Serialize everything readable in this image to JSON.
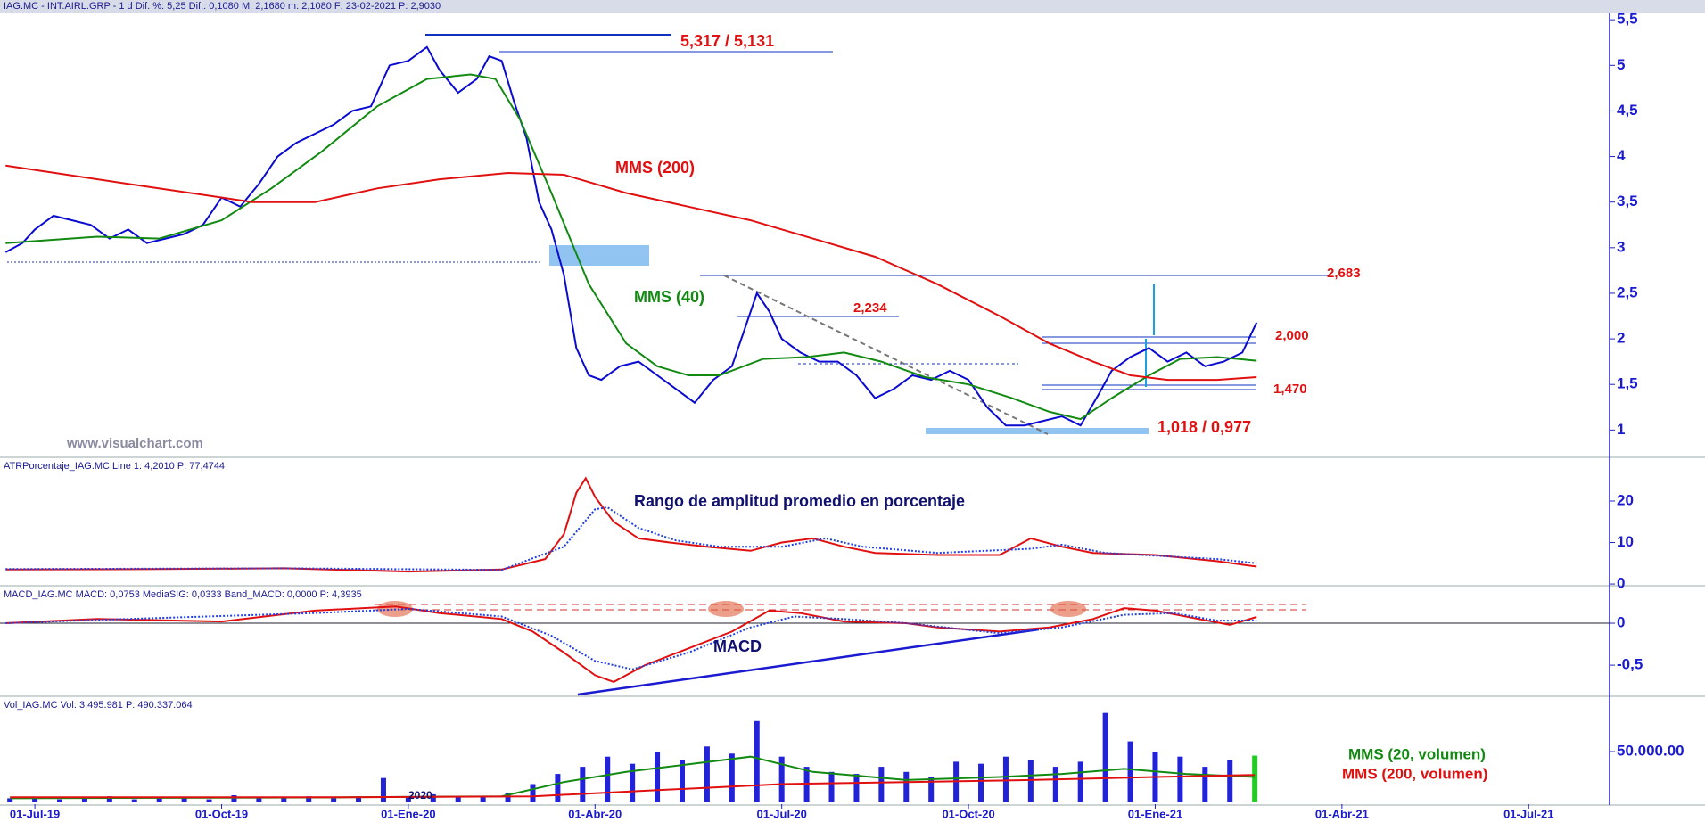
{
  "chart_data": [
    {
      "type": "line",
      "title": "IAG.MC - INT.AIRL.GRP - 1 d  Dif. %: 5,25  Dif.: 0,1080  M: 2,1680  m: 2,1080  F: 23-02-2021  P: 2,9030",
      "xlim": [
        -0.56,
        25.3
      ],
      "ylim": [
        0.71,
        5.57
      ],
      "yticks": [
        1,
        {
          "value": 1.5,
          "label": "1,5"
        },
        2,
        {
          "value": 2.5,
          "label": "2,5"
        },
        3,
        {
          "value": 3.5,
          "label": "3,5"
        },
        4,
        {
          "value": 4.5,
          "label": "4,5"
        },
        5,
        {
          "value": 5.5,
          "label": "5,5"
        }
      ],
      "series": [
        {
          "color": "#0a0ad0",
          "x": [
            -0.47,
            -0.2,
            0,
            0.3,
            0.6,
            0.9,
            1.2,
            1.5,
            1.8,
            2.1,
            2.4,
            2.7,
            3.0,
            3.3,
            3.6,
            3.9,
            4.2,
            4.5,
            4.8,
            5.1,
            5.4,
            5.7,
            6.0,
            6.3,
            6.5,
            6.8,
            7.1,
            7.3,
            7.5,
            7.7,
            7.9,
            8.1,
            8.3,
            8.5,
            8.7,
            8.9,
            9.1,
            9.4,
            9.7,
            10.0,
            10.3,
            10.6,
            10.9,
            11.2,
            11.4,
            11.6,
            11.8,
            12.0,
            12.3,
            12.6,
            12.9,
            13.2,
            13.5,
            13.8,
            14.1,
            14.4,
            14.7,
            15.0,
            15.3,
            15.6,
            15.9,
            16.2,
            16.5,
            16.8,
            17.1,
            17.3,
            17.6,
            17.9,
            18.2,
            18.5,
            18.8,
            19.1,
            19.4,
            19.63
          ],
          "values": [
            2.95,
            3.05,
            3.2,
            3.35,
            3.3,
            3.25,
            3.1,
            3.2,
            3.05,
            3.1,
            3.15,
            3.25,
            3.55,
            3.45,
            3.7,
            4.0,
            4.15,
            4.25,
            4.35,
            4.5,
            4.55,
            5.0,
            5.05,
            5.2,
            4.95,
            4.7,
            4.85,
            5.1,
            5.05,
            4.6,
            4.2,
            3.5,
            3.2,
            2.7,
            1.9,
            1.6,
            1.55,
            1.7,
            1.75,
            1.6,
            1.45,
            1.3,
            1.55,
            1.7,
            2.1,
            2.5,
            2.3,
            2.0,
            1.85,
            1.75,
            1.75,
            1.6,
            1.35,
            1.45,
            1.6,
            1.55,
            1.65,
            1.55,
            1.25,
            1.05,
            1.05,
            1.1,
            1.15,
            1.05,
            1.4,
            1.65,
            1.8,
            1.9,
            1.75,
            1.85,
            1.7,
            1.75,
            1.85,
            2.18
          ]
        },
        {
          "color": "#128a12",
          "x": [
            -0.47,
            1,
            2,
            3,
            3.8,
            4.6,
            5.5,
            6.3,
            7.0,
            7.4,
            7.8,
            8.3,
            8.9,
            9.5,
            10.0,
            10.5,
            11.0,
            11.7,
            12.4,
            13.0,
            13.6,
            14.3,
            15.0,
            15.7,
            16.3,
            16.8,
            17.3,
            17.9,
            18.4,
            19.0,
            19.63
          ],
          "values": [
            3.05,
            3.12,
            3.1,
            3.3,
            3.65,
            4.05,
            4.55,
            4.85,
            4.9,
            4.85,
            4.4,
            3.6,
            2.6,
            1.95,
            1.7,
            1.6,
            1.6,
            1.78,
            1.8,
            1.85,
            1.75,
            1.58,
            1.5,
            1.35,
            1.2,
            1.12,
            1.35,
            1.6,
            1.78,
            1.8,
            1.76
          ]
        },
        {
          "color": "#e01010",
          "x": [
            -0.47,
            1.5,
            3.5,
            4.5,
            5.5,
            6.5,
            7.6,
            8.5,
            9.5,
            10.5,
            11.5,
            12.5,
            13.5,
            14.5,
            15.5,
            16.3,
            17.0,
            17.6,
            18.2,
            19.0,
            19.63
          ],
          "values": [
            3.9,
            3.7,
            3.5,
            3.5,
            3.65,
            3.75,
            3.82,
            3.8,
            3.6,
            3.45,
            3.3,
            3.1,
            2.9,
            2.6,
            2.25,
            1.95,
            1.75,
            1.6,
            1.55,
            1.55,
            1.58
          ]
        }
      ],
      "annotations": [
        "5,317 / 5,131",
        "MMS (200)",
        "MMS (40)",
        "2,683",
        "2,234",
        "2,000",
        "1,470",
        "1,018 / 0,977",
        "www.visualchart.com"
      ]
    },
    {
      "type": "line",
      "title": "ATRPorcentaje_IAG.MC  Line 1: 4,2010  P: 77,4744",
      "xlim": [
        -0.56,
        25.3
      ],
      "ylim": [
        -0.2,
        30.1
      ],
      "yticks": [
        0,
        10,
        20
      ],
      "series": [
        {
          "color": "#e01010",
          "x": [
            -0.47,
            2,
            4,
            6,
            7.5,
            8.2,
            8.5,
            8.7,
            8.85,
            9.0,
            9.3,
            9.7,
            10.2,
            10.8,
            11.5,
            12,
            12.5,
            13,
            13.5,
            14.5,
            15.5,
            16,
            16.5,
            17,
            18,
            19,
            19.63
          ],
          "values": [
            3.5,
            3.6,
            3.8,
            3.0,
            3.5,
            6,
            12,
            22,
            25.5,
            21,
            15,
            11,
            10,
            9,
            8,
            10,
            11,
            9,
            7.5,
            7,
            7,
            11,
            9,
            7.5,
            7,
            5.5,
            4.2
          ]
        },
        {
          "color": "#2040e0",
          "x": [
            -0.47,
            4,
            7.5,
            8.5,
            9.0,
            9.2,
            9.7,
            10.3,
            11,
            12,
            12.7,
            13.3,
            14.5,
            16,
            16.5,
            17.2,
            19,
            19.63
          ],
          "values": [
            3.6,
            3.8,
            3.4,
            9,
            18,
            18.5,
            13.5,
            10.5,
            9,
            9,
            11,
            9,
            7.5,
            8.5,
            9.5,
            7.5,
            6,
            5
          ]
        }
      ],
      "annotations": [
        "Rango de amplitud promedio en porcentaje"
      ]
    },
    {
      "type": "line",
      "title": "MACD_IAG.MC  MACD: 0,0753  MediaSIG: 0,0333  Band_MACD: 0,0000  P: 4,3935",
      "xlim": [
        -0.56,
        25.3
      ],
      "ylim": [
        -0.86,
        0.425
      ],
      "yticks": [
        {
          "value": -0.5,
          "label": "-0,5"
        },
        0
      ],
      "series": [
        {
          "color": "#e01010",
          "x": [
            -0.47,
            1,
            3,
            4.5,
            5.8,
            6.5,
            7.5,
            8.0,
            8.5,
            9.0,
            9.3,
            9.8,
            10.5,
            11.2,
            11.8,
            12.3,
            13,
            14,
            14.5,
            15.5,
            16.3,
            17,
            17.5,
            18,
            18.7,
            19.2,
            19.63
          ],
          "values": [
            0,
            0.05,
            0.02,
            0.15,
            0.2,
            0.12,
            0.05,
            -0.1,
            -0.35,
            -0.62,
            -0.7,
            -0.5,
            -0.3,
            -0.1,
            0.15,
            0.12,
            0.02,
            0,
            -0.05,
            -0.1,
            -0.05,
            0.05,
            0.18,
            0.15,
            0.05,
            -0.02,
            0.075
          ]
        },
        {
          "color": "#2040e0",
          "x": [
            -0.47,
            1,
            4.5,
            6,
            7.5,
            8.3,
            9.0,
            9.6,
            10.5,
            11.5,
            12.2,
            13,
            14,
            15.5,
            16.5,
            17.5,
            18.3,
            19,
            19.63
          ],
          "values": [
            0,
            0.04,
            0.12,
            0.17,
            0.08,
            -0.15,
            -0.45,
            -0.55,
            -0.35,
            -0.05,
            0.08,
            0.05,
            0,
            -0.12,
            -0.05,
            0.1,
            0.12,
            0.03,
            0.033
          ]
        }
      ],
      "annotations": [
        "MACD"
      ]
    },
    {
      "type": "bar",
      "title": "Vol_IAG.MC  Vol: 3.495.981  P: 490.337.064",
      "xlim": [
        -0.56,
        25.3
      ],
      "ylim": [
        -1750000,
        102600000
      ],
      "yticks": [
        {
          "value": 50000000,
          "label": "50.000.00"
        }
      ],
      "xticks": [
        {
          "value": 0,
          "label": "01-Jul-19"
        },
        {
          "value": 3,
          "label": "01-Oct-19"
        },
        {
          "value": 6,
          "label": "01-Ene-20"
        },
        {
          "value": 9,
          "label": "01-Abr-20"
        },
        {
          "value": 12,
          "label": "01-Jul-20"
        },
        {
          "value": 15,
          "label": "01-Oct-20"
        },
        {
          "value": 18,
          "label": "01-Ene-21"
        },
        {
          "value": 21,
          "label": "01-Abr-21"
        },
        {
          "value": 24,
          "label": "01-Jul-21"
        }
      ],
      "series": [
        {
          "type": "bar",
          "color": "#2222d8",
          "last_color": "#22cc22",
          "x": [
            -0.4,
            0,
            0.4,
            0.8,
            1.2,
            1.6,
            2.0,
            2.4,
            2.8,
            3.2,
            3.6,
            4.0,
            4.4,
            4.8,
            5.2,
            5.6,
            6.0,
            6.4,
            6.8,
            7.2,
            7.6,
            8.0,
            8.4,
            8.8,
            9.2,
            9.6,
            10.0,
            10.4,
            10.8,
            11.2,
            11.6,
            12.0,
            12.4,
            12.8,
            13.2,
            13.6,
            14.0,
            14.4,
            14.8,
            15.2,
            15.6,
            16.0,
            16.4,
            16.8,
            17.2,
            17.6,
            18.0,
            18.4,
            18.8,
            19.2,
            19.6
          ],
          "values": [
            4000000.0,
            5000000.0,
            3000000.0,
            4000000.0,
            6000000.0,
            3000000.0,
            4000000.0,
            5000000.0,
            3000000.0,
            7000000.0,
            4000000.0,
            5000000.0,
            6000000.0,
            4000000.0,
            6000000.0,
            24000000.0,
            5000000.0,
            8000000.0,
            6000000.0,
            5000000.0,
            9000000.0,
            18000000.0,
            28000000.0,
            35000000.0,
            45000000.0,
            38000000.0,
            50000000.0,
            42000000.0,
            55000000.0,
            48000000.0,
            80000000.0,
            45000000.0,
            35000000.0,
            30000000.0,
            28000000.0,
            35000000.0,
            30000000.0,
            25000000.0,
            40000000.0,
            38000000.0,
            45000000.0,
            42000000.0,
            35000000.0,
            40000000.0,
            88000000.0,
            60000000.0,
            50000000.0,
            45000000.0,
            35000000.0,
            42000000.0,
            46000000.0
          ]
        },
        {
          "type": "line",
          "color": "#128a12",
          "x": [
            -0.4,
            5,
            7.5,
            8.5,
            9.5,
            11.5,
            12.5,
            14,
            15.5,
            16.5,
            17.5,
            18.5,
            19.6
          ],
          "values": [
            4000000.0,
            5000000.0,
            6000000.0,
            20000000.0,
            30000000.0,
            45000000.0,
            30000000.0,
            22000000.0,
            25000000.0,
            28000000.0,
            33000000.0,
            28000000.0,
            25000000.0
          ]
        },
        {
          "type": "line",
          "color": "#e01010",
          "x": [
            -0.4,
            5,
            8,
            10,
            12,
            14,
            16,
            18,
            19.6
          ],
          "values": [
            5000000.0,
            5000000.0,
            6000000.0,
            12000000.0,
            18000000.0,
            20000000.0,
            22000000.0,
            25000000.0,
            27000000.0
          ]
        }
      ],
      "annotations": [
        "MMS (20, volumen)",
        "MMS (200, volumen)",
        "2020"
      ]
    }
  ]
}
